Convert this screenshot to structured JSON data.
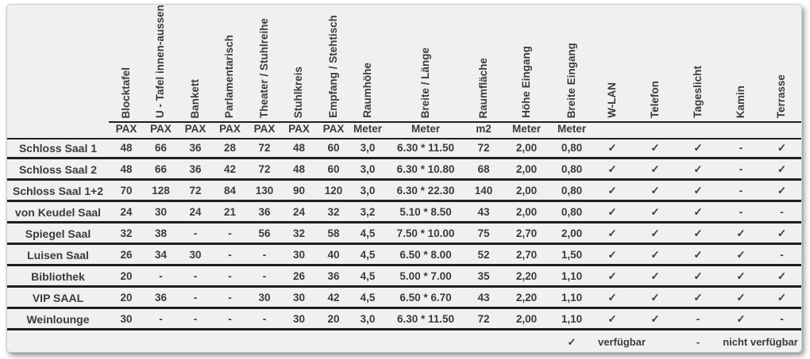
{
  "table": {
    "columns": [
      {
        "label": "",
        "unit": ""
      },
      {
        "label": "Blocktafel",
        "unit": "PAX"
      },
      {
        "label": "U - Tafel innen-aussen",
        "unit": "PAX"
      },
      {
        "label": "Bankett",
        "unit": "PAX"
      },
      {
        "label": "Parlamentarisch",
        "unit": "PAX"
      },
      {
        "label": "Theater / Stuhlreihe",
        "unit": "PAX"
      },
      {
        "label": "Stuhlkreis",
        "unit": "PAX"
      },
      {
        "label": "Empfang / Stehtisch",
        "unit": "PAX"
      },
      {
        "label": "Raumhöhe",
        "unit": "Meter"
      },
      {
        "label": "Breite / Länge",
        "unit": "Meter"
      },
      {
        "label": "Raumfläche",
        "unit": "m2"
      },
      {
        "label": "Höhe Eingang",
        "unit": "Meter"
      },
      {
        "label": "Breite Eingang",
        "unit": "Meter"
      },
      {
        "label": "W-LAN",
        "unit": ""
      },
      {
        "label": "Telefon",
        "unit": ""
      },
      {
        "label": "Tageslicht",
        "unit": ""
      },
      {
        "label": "Kamin",
        "unit": ""
      },
      {
        "label": "Terrasse",
        "unit": ""
      }
    ],
    "rows": [
      {
        "name": "Schloss Saal 1",
        "values": [
          "48",
          "66",
          "36",
          "28",
          "72",
          "48",
          "60",
          "3,0",
          "6.30 * 11.50",
          "72",
          "2,00",
          "0,80",
          "✓",
          "✓",
          "✓",
          "-",
          "✓"
        ]
      },
      {
        "name": "Schloss Saal 2",
        "values": [
          "48",
          "66",
          "36",
          "42",
          "72",
          "48",
          "60",
          "3,0",
          "6.30 * 10.80",
          "68",
          "2,00",
          "0,80",
          "✓",
          "✓",
          "✓",
          "-",
          "✓"
        ]
      },
      {
        "name": "Schloss Saal 1+2",
        "values": [
          "70",
          "128",
          "72",
          "84",
          "130",
          "90",
          "120",
          "3,0",
          "6.30 * 22.30",
          "140",
          "2,00",
          "0,80",
          "✓",
          "✓",
          "✓",
          "-",
          "✓"
        ]
      },
      {
        "name": "von Keudel Saal",
        "values": [
          "24",
          "30",
          "24",
          "21",
          "36",
          "24",
          "32",
          "3,2",
          "5.10 * 8.50",
          "43",
          "2,00",
          "0,80",
          "✓",
          "✓",
          "✓",
          "-",
          "-"
        ]
      },
      {
        "name": "Spiegel Saal",
        "values": [
          "32",
          "38",
          "-",
          "-",
          "56",
          "32",
          "58",
          "4,5",
          "7.50 * 10.00",
          "75",
          "2,70",
          "2,00",
          "✓",
          "✓",
          "✓",
          "✓",
          "✓"
        ]
      },
      {
        "name": "Luisen Saal",
        "values": [
          "26",
          "34",
          "30",
          "-",
          "-",
          "30",
          "40",
          "4,5",
          "6.50 * 8.00",
          "52",
          "2,70",
          "1,50",
          "✓",
          "✓",
          "✓",
          "✓",
          "-"
        ]
      },
      {
        "name": "Bibliothek",
        "values": [
          "20",
          "-",
          "-",
          "-",
          "-",
          "26",
          "36",
          "4,5",
          "5.00 * 7.00",
          "35",
          "2,20",
          "1,10",
          "✓",
          "✓",
          "✓",
          "✓",
          "✓"
        ]
      },
      {
        "name": "VIP SAAL",
        "values": [
          "20",
          "36",
          "-",
          "-",
          "30",
          "30",
          "42",
          "4,5",
          "6.50 * 6.70",
          "43",
          "2,20",
          "1,10",
          "✓",
          "✓",
          "✓",
          "✓",
          "✓"
        ]
      },
      {
        "name": "Weinlounge",
        "values": [
          "30",
          "-",
          "-",
          "-",
          "-",
          "30",
          "20",
          "3,0",
          "6.30 * 11.50",
          "72",
          "2,00",
          "1,10",
          "✓",
          "✓",
          "-",
          "✓",
          "-"
        ]
      }
    ],
    "legend": {
      "available_symbol": "✓",
      "available_label": "verfügbar",
      "unavailable_symbol": "-",
      "unavailable_label": "nicht verfügbar"
    },
    "colors": {
      "sheet_background": "#f0f0ef",
      "text": "#3b3b3b",
      "line": "#1f1f1f"
    }
  }
}
